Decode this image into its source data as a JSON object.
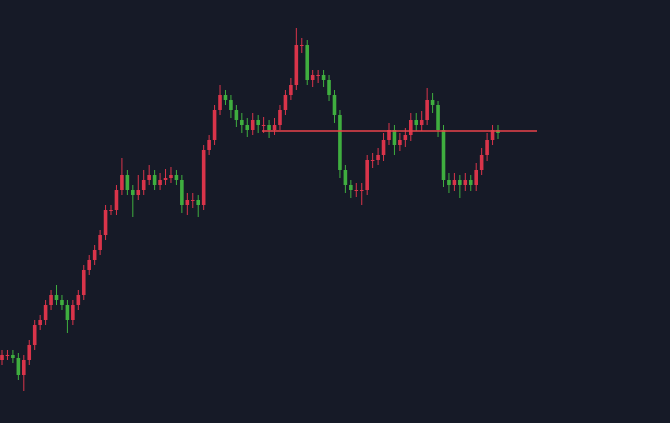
{
  "chart_data": {
    "type": "candlestick",
    "up_color": "#d9344a",
    "down_color": "#3fae3f",
    "background": "#161a27",
    "ylim": [
      0,
      423
    ],
    "open": [
      63,
      68,
      68,
      65,
      48,
      63,
      78,
      98,
      103,
      118,
      128,
      123,
      118,
      103,
      118,
      128,
      153,
      163,
      173,
      188,
      213,
      213,
      233,
      248,
      233,
      228,
      233,
      243,
      248,
      238,
      243,
      245,
      248,
      243,
      218,
      223,
      223,
      218,
      273,
      283,
      313,
      328,
      323,
      313,
      303,
      298,
      293,
      303,
      298,
      298,
      293,
      298,
      313,
      328,
      338,
      378,
      378,
      343,
      348,
      348,
      343,
      328,
      308,
      253,
      238,
      233,
      233,
      233,
      263,
      263,
      268,
      283,
      293,
      278,
      283,
      288,
      303,
      298,
      303,
      323,
      318,
      293,
      243,
      238,
      243,
      238,
      243,
      238,
      253,
      268,
      283,
      293
    ],
    "high": [
      73,
      73,
      73,
      70,
      68,
      83,
      103,
      108,
      123,
      133,
      138,
      128,
      123,
      123,
      133,
      158,
      168,
      178,
      193,
      218,
      218,
      238,
      265,
      253,
      238,
      248,
      253,
      258,
      253,
      250,
      254,
      256,
      253,
      248,
      230,
      230,
      228,
      278,
      288,
      318,
      338,
      333,
      328,
      318,
      310,
      305,
      310,
      308,
      306,
      303,
      305,
      318,
      333,
      345,
      395,
      385,
      383,
      353,
      353,
      353,
      348,
      333,
      313,
      258,
      243,
      240,
      240,
      268,
      270,
      275,
      290,
      300,
      298,
      290,
      295,
      310,
      310,
      312,
      335,
      330,
      322,
      298,
      250,
      250,
      248,
      250,
      248,
      260,
      275,
      290,
      298,
      298
    ],
    "low": [
      58,
      63,
      60,
      43,
      32,
      58,
      73,
      93,
      98,
      113,
      118,
      113,
      90,
      98,
      113,
      123,
      148,
      158,
      168,
      183,
      208,
      208,
      228,
      228,
      206,
      223,
      228,
      238,
      233,
      233,
      238,
      240,
      238,
      210,
      208,
      215,
      206,
      213,
      268,
      278,
      308,
      318,
      305,
      296,
      290,
      286,
      288,
      290,
      290,
      285,
      288,
      293,
      308,
      323,
      333,
      370,
      338,
      336,
      340,
      336,
      322,
      300,
      245,
      230,
      225,
      226,
      218,
      228,
      255,
      258,
      262,
      278,
      268,
      272,
      276,
      282,
      292,
      292,
      298,
      310,
      286,
      236,
      230,
      232,
      225,
      232,
      232,
      232,
      248,
      262,
      278,
      284
    ],
    "close": [
      68,
      68,
      65,
      48,
      63,
      78,
      98,
      103,
      118,
      128,
      123,
      118,
      103,
      118,
      128,
      153,
      163,
      173,
      188,
      213,
      213,
      233,
      248,
      233,
      228,
      233,
      243,
      248,
      238,
      243,
      245,
      248,
      243,
      218,
      223,
      223,
      218,
      273,
      283,
      313,
      328,
      323,
      313,
      303,
      298,
      293,
      303,
      298,
      298,
      293,
      298,
      313,
      328,
      338,
      378,
      378,
      343,
      348,
      348,
      343,
      328,
      308,
      253,
      238,
      233,
      233,
      233,
      263,
      263,
      268,
      283,
      293,
      278,
      283,
      288,
      303,
      298,
      303,
      323,
      318,
      293,
      243,
      238,
      243,
      238,
      243,
      238,
      253,
      268,
      283,
      293,
      290
    ],
    "hline": {
      "value": 292,
      "color": "#e8424a"
    }
  }
}
